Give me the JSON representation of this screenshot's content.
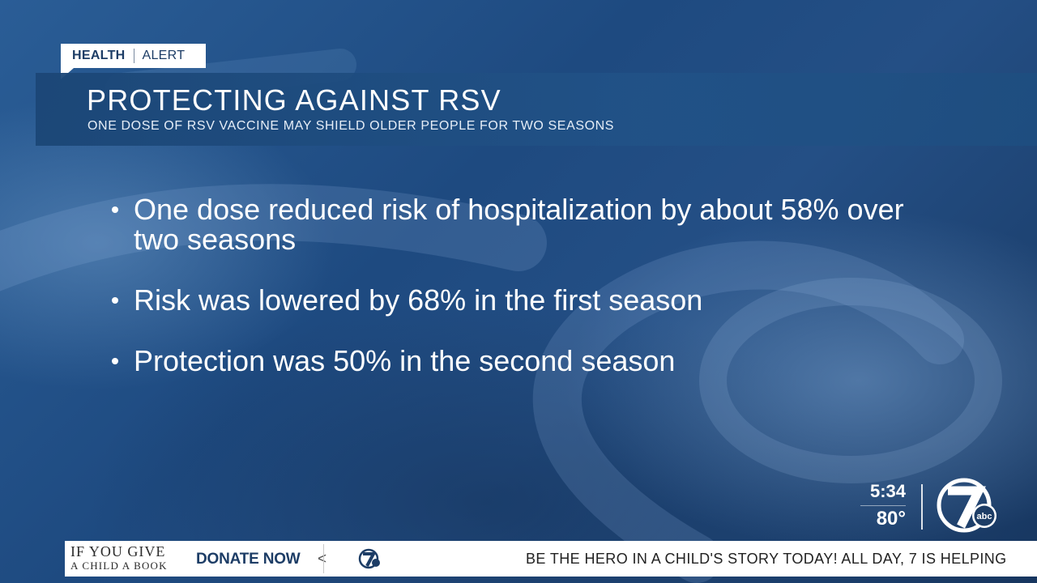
{
  "header": {
    "tag_primary": "HEALTH",
    "tag_secondary": "ALERT",
    "title": "PROTECTING AGAINST RSV",
    "subtitle": "ONE DOSE OF RSV VACCINE MAY SHIELD OLDER PEOPLE FOR TWO SEASONS"
  },
  "bullets": [
    "One dose reduced risk of hospitalization by about 58% over two seasons",
    "Risk was lowered by 68% in the first season",
    "Protection was 50% in the second season"
  ],
  "status": {
    "time": "5:34",
    "temperature": "80°"
  },
  "logo": {
    "channel": "7",
    "network": "abc",
    "icon": "wxyz-7-abc-logo"
  },
  "ticker": {
    "promo_line1": "IF YOU GIVE",
    "promo_line2": "A CHILD A BOOK",
    "donate_label": "DONATE NOW",
    "trailing_char": "<",
    "scroll_text": "BE THE HERO IN A CHILD'S STORY TODAY! ALL DAY, 7 IS HELPING"
  },
  "colors": {
    "brand_navy": "#1d3d66",
    "background_blue": "#1f4e84",
    "text_white": "#ffffff"
  }
}
